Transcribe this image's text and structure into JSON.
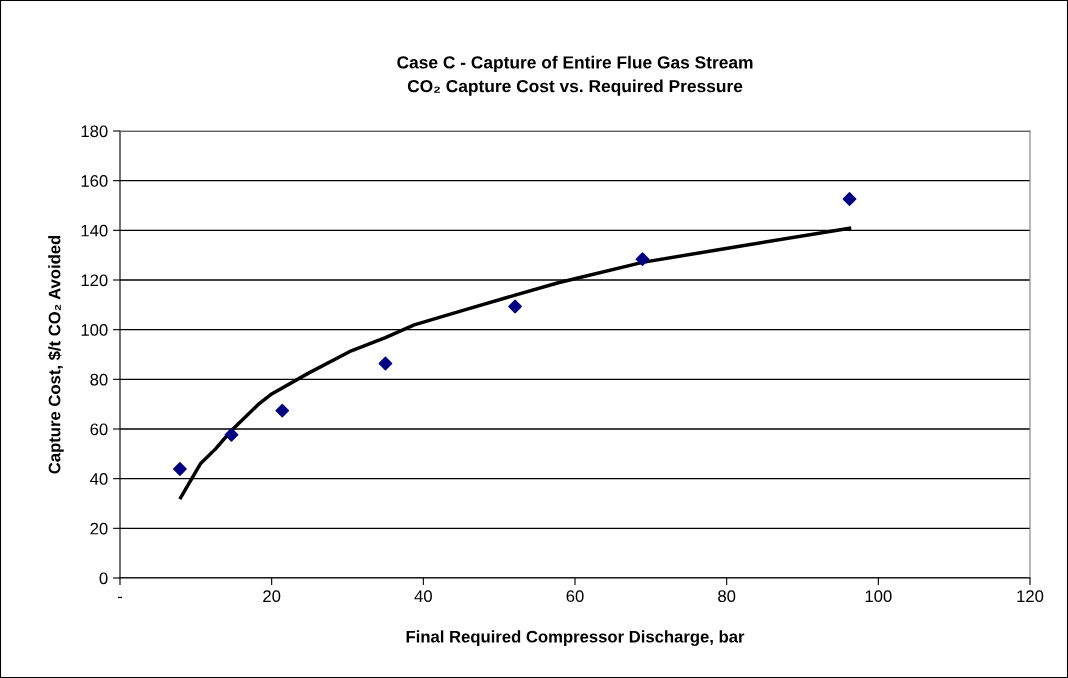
{
  "chart_data": {
    "type": "scatter",
    "title": "Case C - Capture of Entire Flue Gas Stream\nCO₂ Capture Cost vs. Required Pressure",
    "xlabel": "Final Required Compressor Discharge, bar",
    "ylabel": "Capture Cost, $/t CO₂ Avoided",
    "series": [
      {
        "color": "#000080",
        "marker": "diamond",
        "x": [
          7.9,
          14.7,
          21.4,
          35.0,
          52.1,
          68.9,
          96.2
        ],
        "values": [
          43.9,
          57.7,
          67.4,
          86.4,
          109.3,
          128.4,
          152.6
        ]
      },
      {
        "type": "line",
        "color": "#000000",
        "marker": "none",
        "line_style": "solid",
        "x": [
          8.0,
          10.6,
          12.6,
          14.7,
          18.2,
          20.0,
          24.8,
          30.5,
          35.0,
          38.8,
          44.9,
          52.1,
          57.8,
          68.9,
          81.5,
          96.2
        ],
        "values": [
          32.4,
          46.0,
          52.0,
          59.4,
          69.8,
          74.1,
          82.4,
          91.5,
          96.8,
          101.9,
          107.5,
          113.9,
          118.9,
          127.1,
          133.5,
          140.8
        ]
      }
    ],
    "xlim": [
      0,
      120
    ],
    "xticks": [
      {
        "value": 0,
        "label": "-"
      },
      20,
      40,
      60,
      80,
      100,
      120
    ],
    "ylim": [
      0,
      180
    ],
    "yticks": [
      0,
      20,
      40,
      60,
      80,
      100,
      120,
      140,
      160,
      180
    ],
    "grid": "y",
    "legend": false
  }
}
